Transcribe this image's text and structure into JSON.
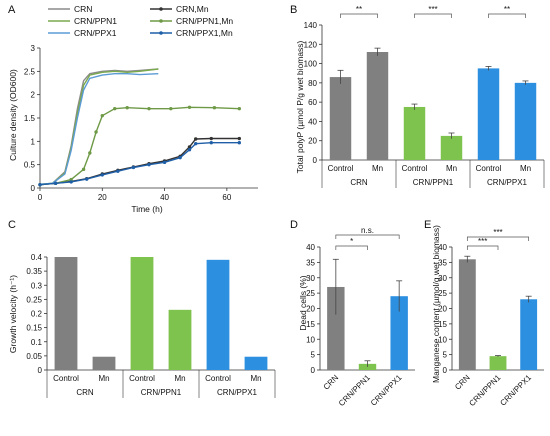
{
  "chart_data": [
    {
      "panel": "A",
      "type": "line",
      "ylabel": "Culture density (OD600)",
      "xlabel": "Time (h)",
      "xlim": [
        0,
        70
      ],
      "ylim": [
        0,
        3
      ],
      "xticks": [
        0,
        20,
        40,
        60
      ],
      "yticks": [
        0,
        0.5,
        1,
        1.5,
        2,
        2.5,
        3
      ],
      "legend": "top",
      "series": [
        {
          "name": "CRN",
          "color": "#8a8a8a",
          "markers": false,
          "x": [
            0,
            4,
            8,
            10,
            12,
            14,
            16,
            20,
            24,
            28,
            32,
            38
          ],
          "y": [
            0.08,
            0.1,
            0.35,
            0.9,
            1.7,
            2.3,
            2.45,
            2.5,
            2.52,
            2.5,
            2.52,
            2.55
          ]
        },
        {
          "name": "CRN,Mn",
          "color": "#333333",
          "markers": true,
          "x": [
            0,
            5,
            10,
            15,
            20,
            25,
            30,
            35,
            40,
            45,
            48,
            50,
            55,
            64
          ],
          "y": [
            0.07,
            0.1,
            0.14,
            0.2,
            0.3,
            0.38,
            0.45,
            0.52,
            0.58,
            0.68,
            0.88,
            1.05,
            1.06,
            1.06
          ]
        },
        {
          "name": "CRN/PPN1",
          "color": "#7aaa4e",
          "markers": false,
          "x": [
            0,
            4,
            8,
            10,
            12,
            14,
            16,
            20,
            24,
            28,
            32,
            38
          ],
          "y": [
            0.08,
            0.1,
            0.32,
            0.85,
            1.6,
            2.2,
            2.42,
            2.48,
            2.5,
            2.48,
            2.5,
            2.55
          ]
        },
        {
          "name": "CRN/PPN1,Mn",
          "color": "#6e9a47",
          "markers": true,
          "x": [
            0,
            5,
            10,
            14,
            16,
            18,
            20,
            24,
            28,
            35,
            42,
            48,
            56,
            64
          ],
          "y": [
            0.07,
            0.1,
            0.18,
            0.4,
            0.75,
            1.2,
            1.55,
            1.7,
            1.72,
            1.7,
            1.7,
            1.73,
            1.72,
            1.7
          ]
        },
        {
          "name": "CRN/PPX1",
          "color": "#5b9bd5",
          "markers": false,
          "x": [
            0,
            4,
            8,
            10,
            12,
            14,
            16,
            20,
            24,
            28,
            32,
            38
          ],
          "y": [
            0.08,
            0.1,
            0.3,
            0.8,
            1.5,
            2.1,
            2.35,
            2.42,
            2.45,
            2.45,
            2.43,
            2.45
          ]
        },
        {
          "name": "CRN/PPX1,Mn",
          "color": "#1f5fa8",
          "markers": true,
          "x": [
            0,
            5,
            10,
            15,
            20,
            25,
            30,
            35,
            40,
            45,
            48,
            50,
            55,
            64
          ],
          "y": [
            0.07,
            0.1,
            0.13,
            0.19,
            0.28,
            0.36,
            0.44,
            0.5,
            0.55,
            0.65,
            0.82,
            0.95,
            0.97,
            0.97
          ]
        }
      ]
    },
    {
      "panel": "B",
      "type": "bar",
      "ylabel": "Total polyP (µmol P/g wet biomass)",
      "ylim": [
        0,
        140
      ],
      "yticks": [
        0,
        20,
        40,
        60,
        80,
        100,
        120,
        140
      ],
      "categories": [
        "Control",
        "Mn",
        "Control",
        "Mn",
        "Control",
        "Mn"
      ],
      "groups": [
        "CRN",
        "CRN/PPN1",
        "CRN/PPX1"
      ],
      "values": [
        86,
        112,
        55,
        25,
        95,
        80
      ],
      "errors": [
        7,
        4,
        3,
        3,
        2,
        2
      ],
      "colors": [
        "#808080",
        "#808080",
        "#7fc34f",
        "#7fc34f",
        "#2d8fe0",
        "#2d8fe0"
      ],
      "significance": [
        "**",
        "***",
        "**"
      ]
    },
    {
      "panel": "C",
      "type": "bar",
      "ylabel": "Growth velocity (h⁻¹)",
      "ylim": [
        0,
        0.4
      ],
      "yticks": [
        0,
        0.05,
        0.1,
        0.15,
        0.2,
        0.25,
        0.3,
        0.35,
        0.4
      ],
      "categories": [
        "Control",
        "Mn",
        "Control",
        "Mn",
        "Control",
        "Mn"
      ],
      "groups": [
        "CRN",
        "CRN/PPN1",
        "CRN/PPX1"
      ],
      "values": [
        0.4,
        0.047,
        0.4,
        0.213,
        0.39,
        0.047
      ],
      "colors": [
        "#808080",
        "#808080",
        "#7fc34f",
        "#7fc34f",
        "#2d8fe0",
        "#2d8fe0"
      ]
    },
    {
      "panel": "D",
      "type": "bar",
      "ylabel": "Dead cells (%)",
      "ylim": [
        0,
        40
      ],
      "yticks": [
        0,
        5,
        10,
        15,
        20,
        25,
        30,
        35,
        40
      ],
      "categories": [
        "CRN",
        "CRN/PPN1",
        "CRN/PPX1"
      ],
      "values": [
        27,
        2,
        24
      ],
      "errors": [
        9,
        1,
        5
      ],
      "colors": [
        "#808080",
        "#7fc34f",
        "#2d8fe0"
      ],
      "significance": [
        "*",
        "n.s."
      ]
    },
    {
      "panel": "E",
      "type": "bar",
      "ylabel": "Manganese content (µmol/g wet biomass)",
      "ylim": [
        0,
        40
      ],
      "yticks": [
        0,
        5,
        10,
        15,
        20,
        25,
        30,
        35,
        40
      ],
      "categories": [
        "CRN",
        "CRN/PPN1",
        "CRN/PPX1"
      ],
      "values": [
        36,
        4.5,
        23
      ],
      "errors": [
        1,
        0.2,
        1
      ],
      "colors": [
        "#808080",
        "#7fc34f",
        "#2d8fe0"
      ],
      "significance": [
        "***",
        "***"
      ]
    }
  ]
}
